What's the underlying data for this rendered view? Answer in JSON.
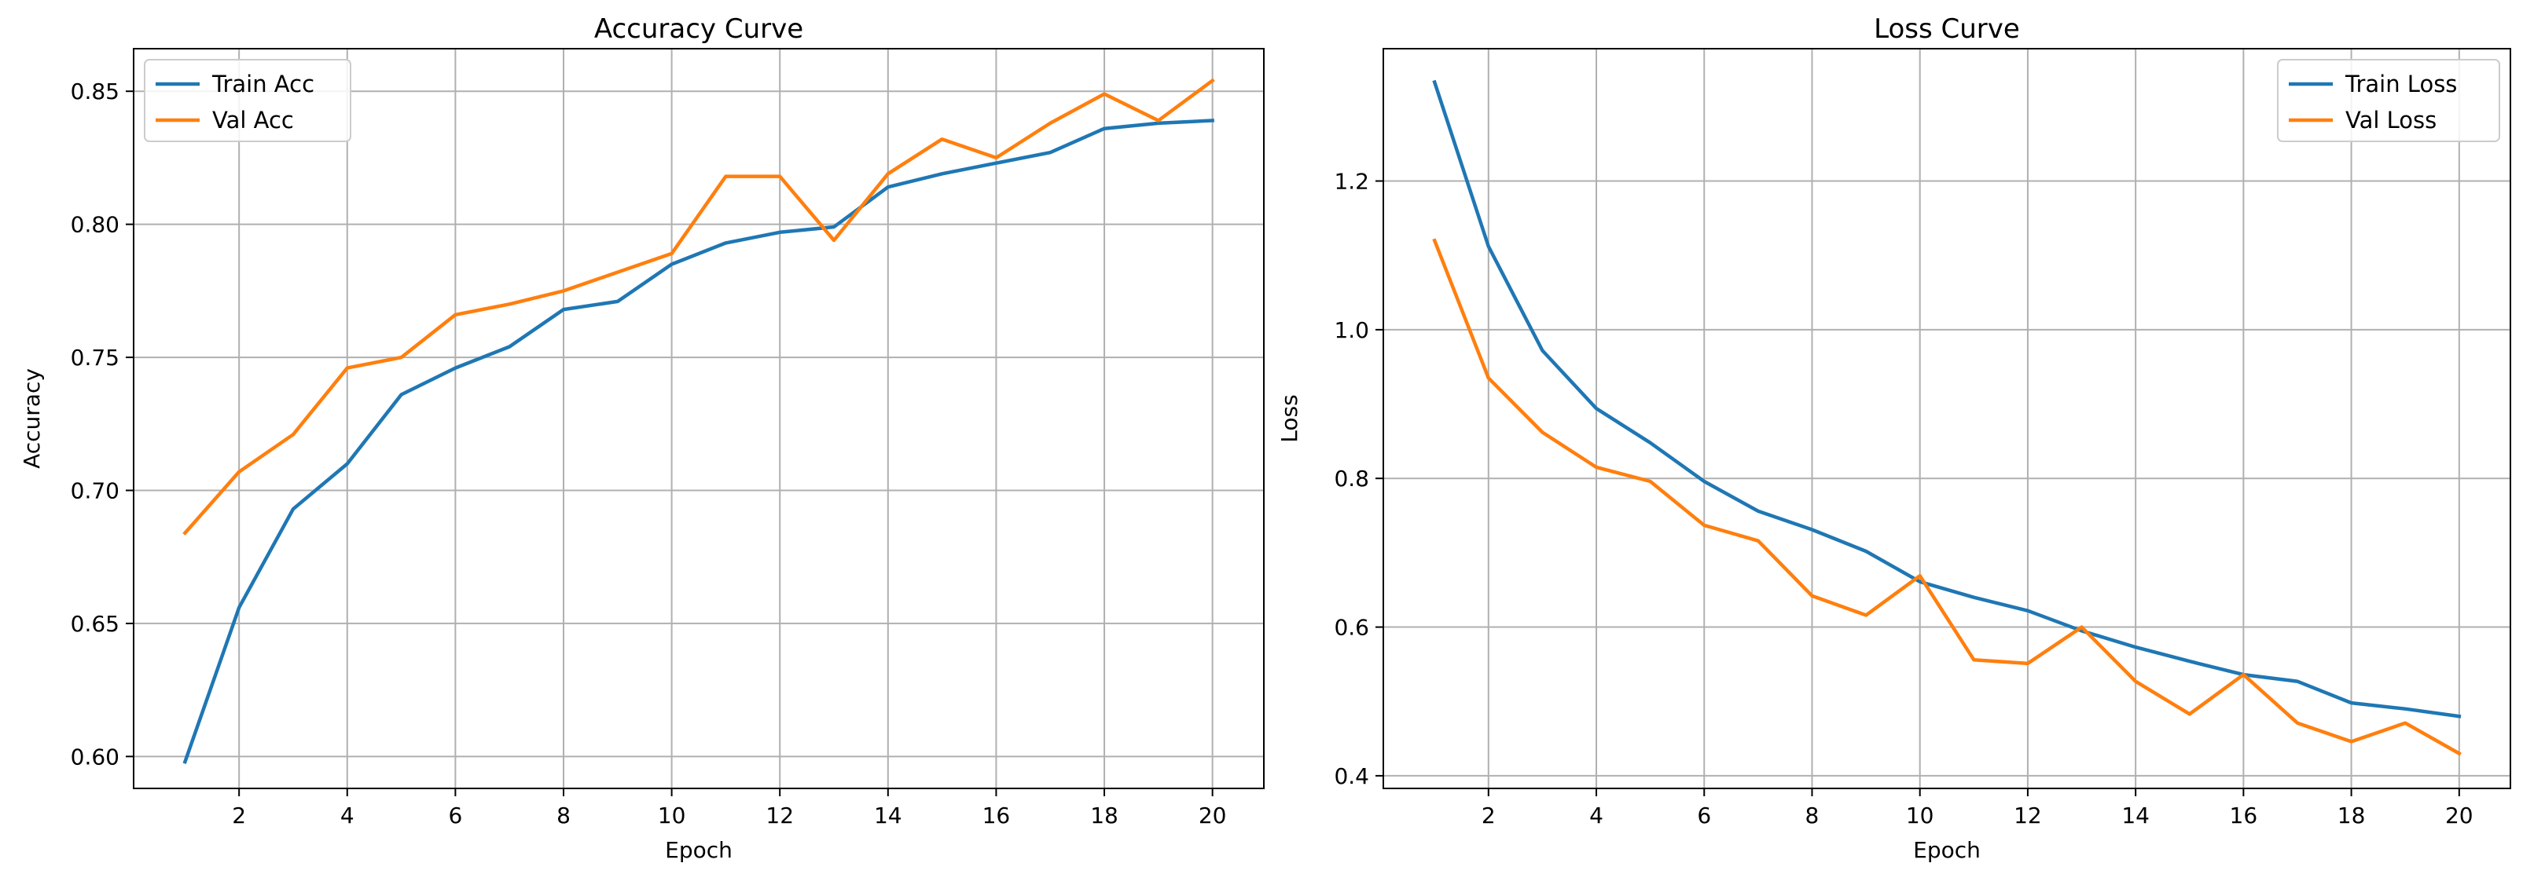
{
  "chart_data": [
    {
      "type": "line",
      "title": "Accuracy Curve",
      "xlabel": "Epoch",
      "ylabel": "Accuracy",
      "xlim": [
        0.05,
        20.95
      ],
      "ylim": [
        0.588,
        0.866
      ],
      "xticks": [
        2,
        4,
        6,
        8,
        10,
        12,
        14,
        16,
        18,
        20
      ],
      "yticks": [
        0.6,
        0.65,
        0.7,
        0.75,
        0.8,
        0.85
      ],
      "tick_decimals": 2,
      "grid": true,
      "legend": "upper-left",
      "x": [
        1,
        2,
        3,
        4,
        5,
        6,
        7,
        8,
        9,
        10,
        11,
        12,
        13,
        14,
        15,
        16,
        17,
        18,
        19,
        20
      ],
      "series": [
        {
          "name": "Train Acc",
          "color": "#1f77b4",
          "values": [
            0.598,
            0.656,
            0.693,
            0.71,
            0.736,
            0.746,
            0.754,
            0.768,
            0.771,
            0.785,
            0.793,
            0.797,
            0.799,
            0.814,
            0.819,
            0.823,
            0.827,
            0.836,
            0.838,
            0.839
          ]
        },
        {
          "name": "Val Acc",
          "color": "#ff7f0e",
          "values": [
            0.684,
            0.707,
            0.721,
            0.746,
            0.75,
            0.766,
            0.77,
            0.775,
            0.782,
            0.789,
            0.818,
            0.818,
            0.794,
            0.819,
            0.832,
            0.825,
            0.838,
            0.849,
            0.839,
            0.854
          ]
        }
      ]
    },
    {
      "type": "line",
      "title": "Loss Curve",
      "xlabel": "Epoch",
      "ylabel": "Loss",
      "xlim": [
        0.05,
        20.95
      ],
      "ylim": [
        0.383,
        1.378
      ],
      "xticks": [
        2,
        4,
        6,
        8,
        10,
        12,
        14,
        16,
        18,
        20
      ],
      "yticks": [
        0.4,
        0.6,
        0.8,
        1.0,
        1.2
      ],
      "tick_decimals": 1,
      "grid": true,
      "legend": "upper-right",
      "x": [
        1,
        2,
        3,
        4,
        5,
        6,
        7,
        8,
        9,
        10,
        11,
        12,
        13,
        14,
        15,
        16,
        17,
        18,
        19,
        20
      ],
      "series": [
        {
          "name": "Train Loss",
          "color": "#1f77b4",
          "values": [
            1.333,
            1.112,
            0.972,
            0.894,
            0.848,
            0.796,
            0.756,
            0.731,
            0.702,
            0.661,
            0.64,
            0.622,
            0.595,
            0.573,
            0.554,
            0.536,
            0.527,
            0.498,
            0.49,
            0.48
          ]
        },
        {
          "name": "Val Loss",
          "color": "#ff7f0e",
          "values": [
            1.12,
            0.935,
            0.862,
            0.815,
            0.796,
            0.737,
            0.716,
            0.642,
            0.616,
            0.669,
            0.556,
            0.551,
            0.6,
            0.527,
            0.483,
            0.536,
            0.471,
            0.446,
            0.471,
            0.43
          ]
        }
      ]
    }
  ]
}
